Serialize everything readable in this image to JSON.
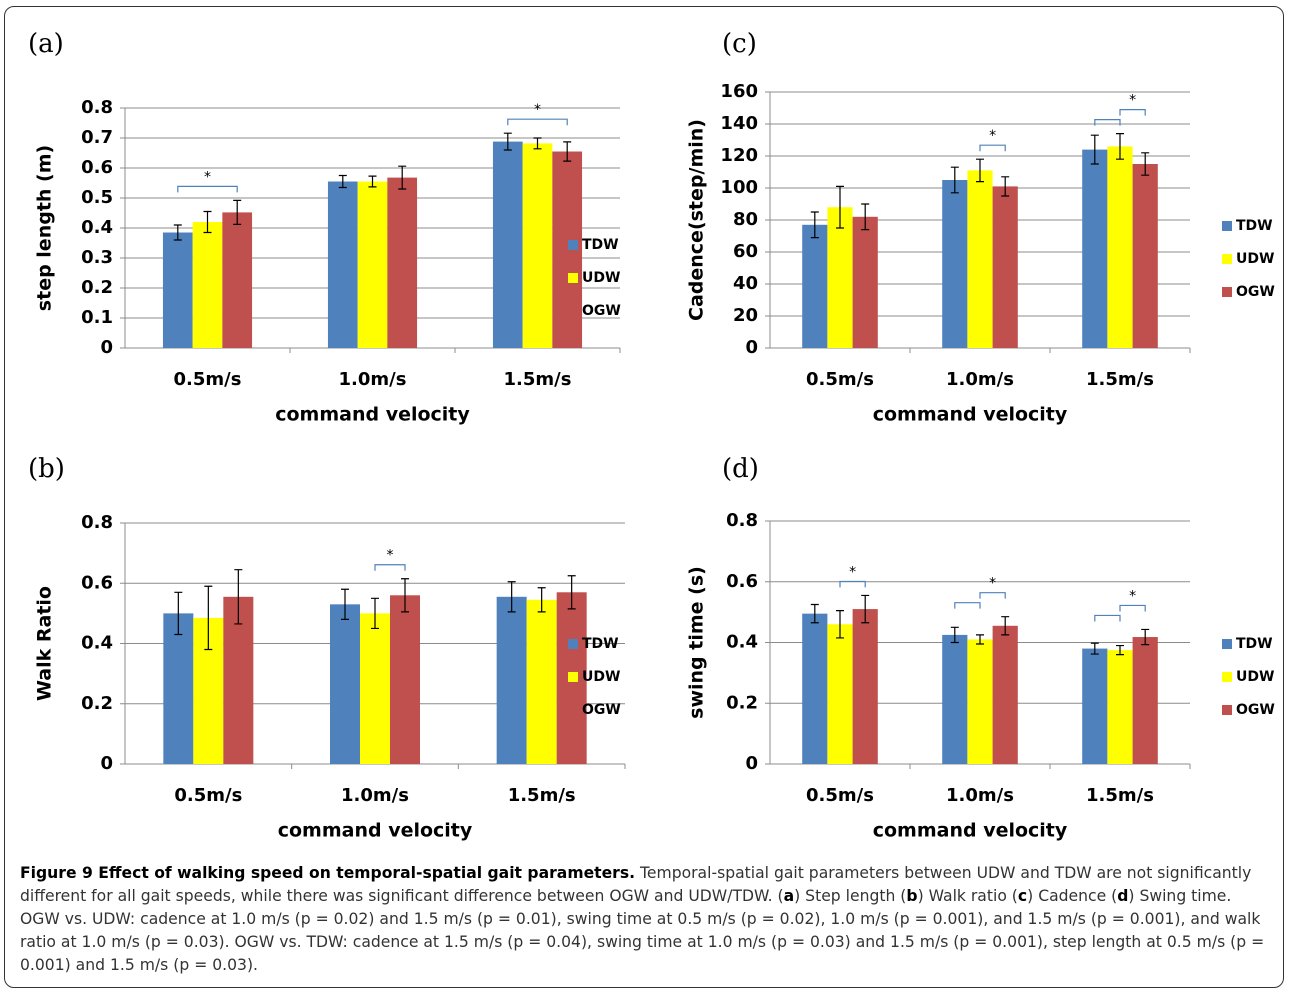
{
  "chart_data": [
    {
      "type": "bar",
      "panel": "(a)",
      "y_label": "step length (m)",
      "x_label": "command velocity",
      "categories": [
        "0.5m/s",
        "1.0m/s",
        "1.5m/s"
      ],
      "series": [
        {
          "name": "TDW",
          "color": "#4f81bd",
          "values": [
            0.385,
            0.555,
            0.688
          ],
          "errors": [
            0.025,
            0.02,
            0.028
          ]
        },
        {
          "name": "UDW",
          "color": "#ffff00",
          "values": [
            0.42,
            0.555,
            0.682
          ],
          "errors": [
            0.035,
            0.018,
            0.018
          ]
        },
        {
          "name": "OGW",
          "color": "#c0504d",
          "values": [
            0.452,
            0.568,
            0.655
          ],
          "errors": [
            0.04,
            0.038,
            0.032
          ]
        }
      ],
      "ylim": [
        0,
        0.8
      ],
      "yticks": [
        0,
        0.1,
        0.2,
        0.3,
        0.4,
        0.5,
        0.6,
        0.7,
        0.8
      ],
      "grid": true,
      "legend": "right",
      "brackets": [
        {
          "category": "0.5m/s",
          "between": [
            "TDW",
            "OGW"
          ],
          "label": "*"
        },
        {
          "category": "1.5m/s",
          "between": [
            "TDW",
            "OGW"
          ],
          "label": "*"
        }
      ]
    },
    {
      "type": "bar",
      "panel": "(b)",
      "y_label": "Walk Ratio",
      "x_label": "command velocity",
      "categories": [
        "0.5m/s",
        "1.0m/s",
        "1.5m/s"
      ],
      "series": [
        {
          "name": "TDW",
          "color": "#4f81bd",
          "values": [
            0.5,
            0.53,
            0.555
          ],
          "errors": [
            0.07,
            0.05,
            0.05
          ]
        },
        {
          "name": "UDW",
          "color": "#ffff00",
          "values": [
            0.485,
            0.5,
            0.545
          ],
          "errors": [
            0.105,
            0.05,
            0.04
          ]
        },
        {
          "name": "OGW",
          "color": "#c0504d",
          "values": [
            0.555,
            0.56,
            0.57
          ],
          "errors": [
            0.09,
            0.055,
            0.055
          ]
        }
      ],
      "ylim": [
        0,
        0.8
      ],
      "yticks": [
        0,
        0.2,
        0.4,
        0.6,
        0.8
      ],
      "grid": true,
      "legend": "right",
      "brackets": [
        {
          "category": "1.0m/s",
          "between": [
            "UDW",
            "OGW"
          ],
          "label": "*"
        }
      ]
    },
    {
      "type": "bar",
      "panel": "(c)",
      "y_label": "Cadence(step/min)",
      "x_label": "command velocity",
      "categories": [
        "0.5m/s",
        "1.0m/s",
        "1.5m/s"
      ],
      "series": [
        {
          "name": "TDW",
          "color": "#4f81bd",
          "values": [
            77,
            105,
            124
          ],
          "errors": [
            8,
            8,
            9
          ]
        },
        {
          "name": "UDW",
          "color": "#ffff00",
          "values": [
            88,
            111,
            126
          ],
          "errors": [
            13,
            7,
            8
          ]
        },
        {
          "name": "OGW",
          "color": "#c0504d",
          "values": [
            82,
            101,
            115
          ],
          "errors": [
            8,
            6,
            7
          ]
        }
      ],
      "ylim": [
        0,
        160
      ],
      "yticks": [
        0,
        20,
        40,
        60,
        80,
        100,
        120,
        140,
        160
      ],
      "grid": true,
      "legend": "right",
      "brackets": [
        {
          "category": "1.0m/s",
          "between": [
            "UDW",
            "OGW"
          ],
          "label": "*"
        },
        {
          "category": "1.5m/s",
          "between": [
            "TDW",
            "UDW"
          ]
        },
        {
          "category": "1.5m/s",
          "between": [
            "UDW",
            "OGW"
          ],
          "label": "*"
        }
      ]
    },
    {
      "type": "bar",
      "panel": "(d)",
      "y_label": "swing  time (s)",
      "x_label": "command velocity",
      "categories": [
        "0.5m/s",
        "1.0m/s",
        "1.5m/s"
      ],
      "series": [
        {
          "name": "TDW",
          "color": "#4f81bd",
          "values": [
            0.495,
            0.425,
            0.38
          ],
          "errors": [
            0.03,
            0.025,
            0.018
          ]
        },
        {
          "name": "UDW",
          "color": "#ffff00",
          "values": [
            0.46,
            0.41,
            0.375
          ],
          "errors": [
            0.045,
            0.015,
            0.015
          ]
        },
        {
          "name": "OGW",
          "color": "#c0504d",
          "values": [
            0.51,
            0.455,
            0.418
          ],
          "errors": [
            0.045,
            0.03,
            0.025
          ]
        }
      ],
      "ylim": [
        0,
        0.8
      ],
      "yticks": [
        0,
        0.2,
        0.4,
        0.6,
        0.8
      ],
      "grid": true,
      "legend": "right",
      "brackets": [
        {
          "category": "0.5m/s",
          "between": [
            "UDW",
            "OGW"
          ],
          "label": "*"
        },
        {
          "category": "1.0m/s",
          "between": [
            "TDW",
            "UDW"
          ]
        },
        {
          "category": "1.0m/s",
          "between": [
            "UDW",
            "OGW"
          ],
          "label": "*"
        },
        {
          "category": "1.5m/s",
          "between": [
            "TDW",
            "UDW"
          ]
        },
        {
          "category": "1.5m/s",
          "between": [
            "UDW",
            "OGW"
          ],
          "label": "*"
        }
      ]
    }
  ],
  "caption": {
    "title": "Figure 9 Effect of walking speed on temporal-spatial gait parameters.",
    "body": [
      "Temporal-spatial gait parameters between UDW and TDW are not significantly different for all gait speeds, while there was significant difference between OGW and UDW/TDW. (",
      "a",
      ") Step length (",
      "b",
      ") Walk ratio (",
      "c",
      ") Cadence (",
      "d",
      ") Swing time. OGW vs. UDW: cadence at 1.0 m/s (p = 0.02) and 1.5 m/s (p = 0.01), swing time at 0.5 m/s (p = 0.02), 1.0 m/s (p = 0.001), and 1.5 m/s (p = 0.001), and walk ratio at 1.0 m/s (p = 0.03). OGW vs. TDW: cadence at 1.5 m/s (p = 0.04), swing time at 1.0 m/s (p = 0.03) and 1.5 m/s (p = 0.001), step length at 0.5 m/s (p = 0.001) and 1.5 m/s (p = 0.03)."
    ]
  }
}
